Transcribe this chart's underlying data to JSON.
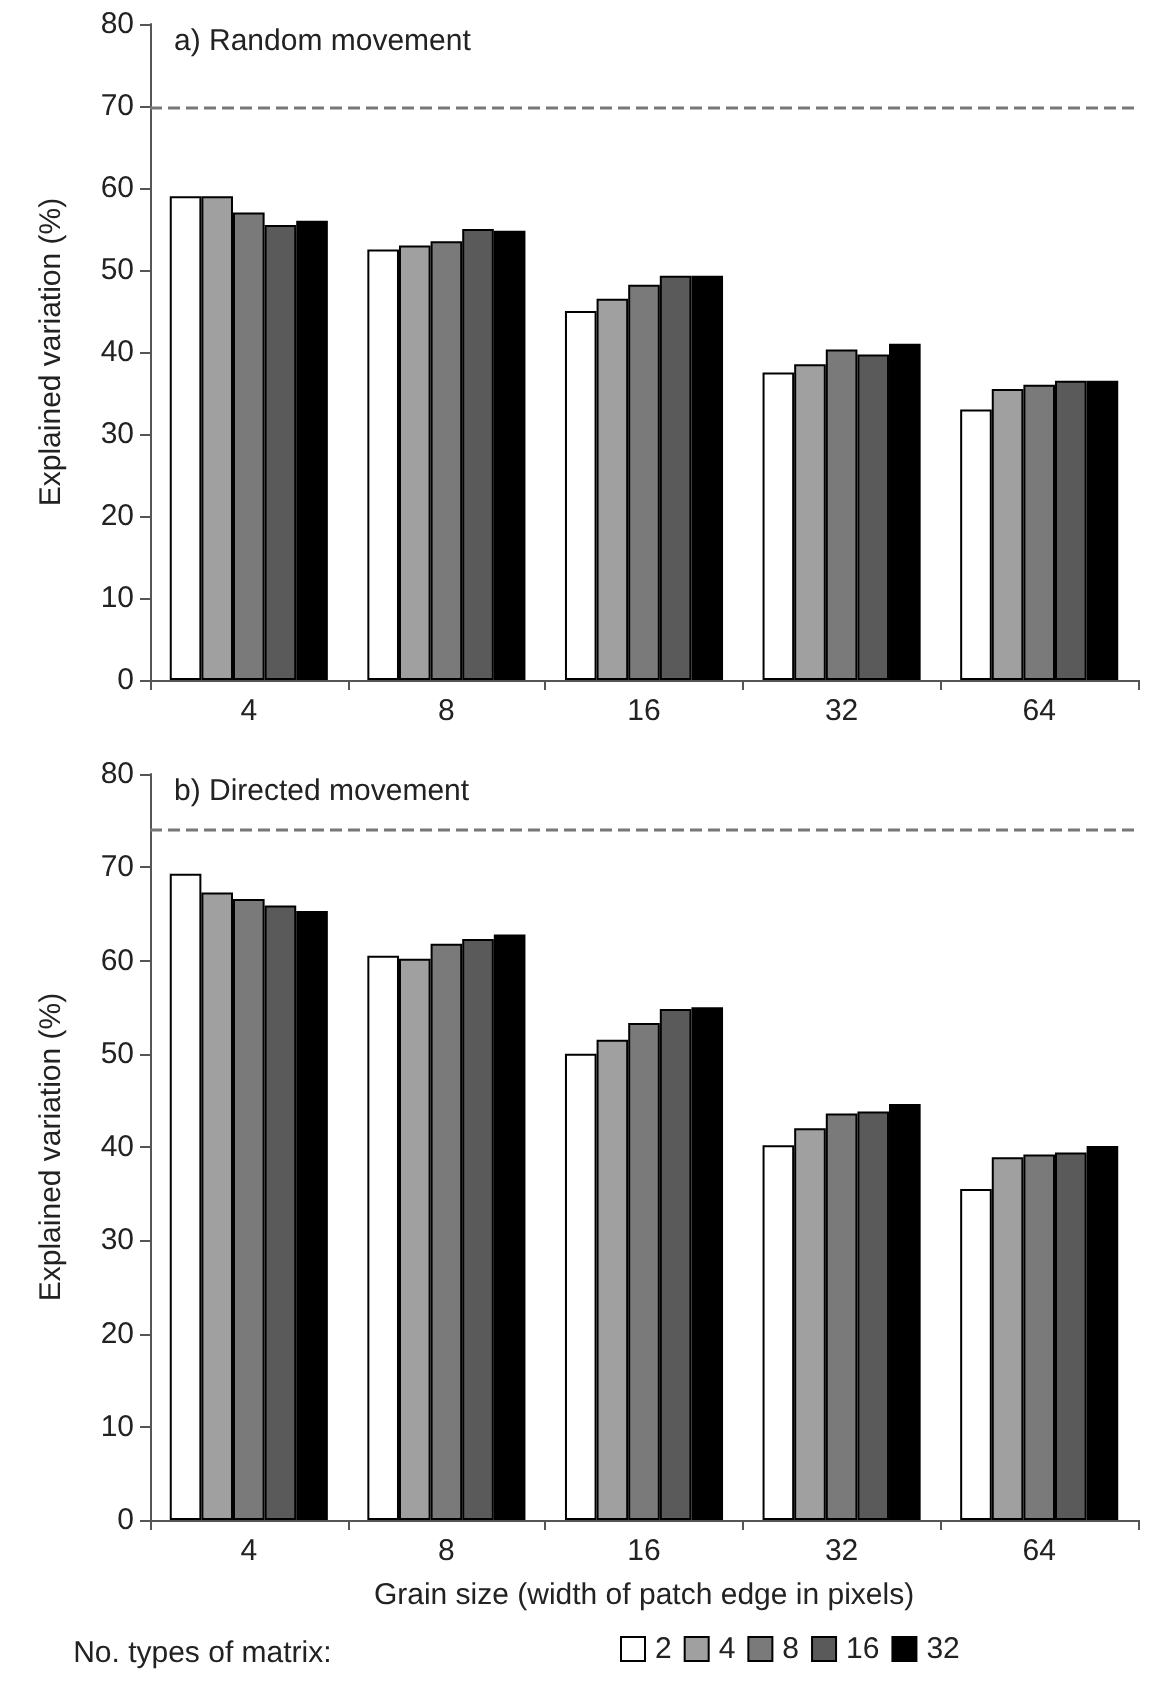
{
  "chart_data": [
    {
      "type": "bar",
      "title": "a) Random movement",
      "ylabel": "Explained variation (%)",
      "categories": [
        "4",
        "8",
        "16",
        "32",
        "64"
      ],
      "series": [
        {
          "color": "#ffffff",
          "values": [
            59,
            52.5,
            45,
            37.5,
            33
          ]
        },
        {
          "color": "#a0a0a0",
          "values": [
            59,
            53,
            46.5,
            38.5,
            35.5
          ]
        },
        {
          "color": "#7a7a7a",
          "values": [
            57,
            53.5,
            48.2,
            40.3,
            36
          ]
        },
        {
          "color": "#5a5a5a",
          "values": [
            55.5,
            55,
            49.3,
            39.7,
            36.5
          ]
        },
        {
          "color": "#000000",
          "values": [
            56,
            54.8,
            49.3,
            41,
            36.5
          ]
        }
      ],
      "ylim": [
        0,
        80
      ],
      "yticks": [
        0,
        10,
        20,
        30,
        40,
        50,
        60,
        70,
        80
      ],
      "grid": false,
      "legend": false,
      "ref_lines": [
        {
          "axis": "y",
          "value": 69.7,
          "color": "#777777",
          "line_style": "dashed"
        }
      ]
    },
    {
      "type": "bar",
      "title": "b) Directed movement",
      "ylabel": "Explained variation (%)",
      "xlabel": "Grain size (width of patch edge in pixels)",
      "legend_title": "No. types of matrix:",
      "categories": [
        "4",
        "8",
        "16",
        "32",
        "64"
      ],
      "series": [
        {
          "name": "2",
          "color": "#ffffff",
          "values": [
            69.3,
            60.5,
            50,
            40.2,
            35.5
          ]
        },
        {
          "name": "4",
          "color": "#a0a0a0",
          "values": [
            67.3,
            60.2,
            51.5,
            42,
            38.9
          ]
        },
        {
          "name": "8",
          "color": "#7a7a7a",
          "values": [
            66.6,
            61.8,
            53.3,
            43.6,
            39.2
          ]
        },
        {
          "name": "16",
          "color": "#5a5a5a",
          "values": [
            65.9,
            62.3,
            54.8,
            43.8,
            39.4
          ]
        },
        {
          "name": "32",
          "color": "#000000",
          "values": [
            65.3,
            62.8,
            55,
            44.6,
            40.1
          ]
        }
      ],
      "ylim": [
        0,
        80
      ],
      "yticks": [
        0,
        10,
        20,
        30,
        40,
        50,
        60,
        70,
        80
      ],
      "grid": false,
      "legend": "bottom",
      "ref_lines": [
        {
          "axis": "y",
          "value": 74,
          "color": "#777777",
          "line_style": "dashed"
        }
      ]
    }
  ]
}
